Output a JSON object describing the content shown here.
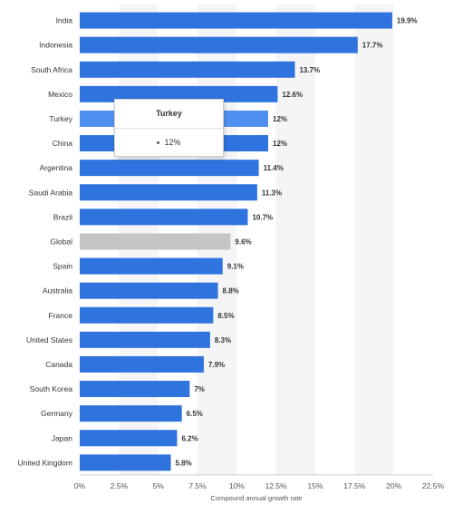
{
  "chart_data": {
    "type": "bar",
    "orientation": "horizontal",
    "categories": [
      "India",
      "Indonesia",
      "South Africa",
      "Mexico",
      "Turkey",
      "China",
      "Argentina",
      "Saudi Arabia",
      "Brazil",
      "Global",
      "Spain",
      "Australia",
      "France",
      "United States",
      "Canada",
      "South Korea",
      "Germany",
      "Japan",
      "United Kingdom"
    ],
    "values": [
      19.9,
      17.7,
      13.7,
      12.6,
      12,
      12,
      11.4,
      11.3,
      10.7,
      9.6,
      9.1,
      8.8,
      8.5,
      8.3,
      7.9,
      7,
      6.5,
      6.2,
      5.8
    ],
    "value_labels": [
      "19.9%",
      "17.7%",
      "13.7%",
      "12.6%",
      "12%",
      "12%",
      "11.4%",
      "11.3%",
      "10.7%",
      "9.6%",
      "9.1%",
      "8.8%",
      "8.5%",
      "8.3%",
      "7.9%",
      "7%",
      "6.5%",
      "6.2%",
      "5.8%"
    ],
    "xlabel": "Compound annual growth rate",
    "ylabel": "",
    "xlim": [
      0,
      22.5
    ],
    "ticks": [
      0,
      2.5,
      5,
      7.5,
      10,
      12.5,
      15,
      17.5,
      20,
      22.5
    ],
    "tick_labels": [
      "0%",
      "2.5%",
      "5%",
      "7.5%",
      "10%",
      "12.5%",
      "15%",
      "17.5%",
      "20%",
      "22.5%"
    ],
    "grid": "vertical bands",
    "highlighted_category": "Turkey",
    "colors": {
      "bar": "#2f73de",
      "bar_highlight": "#4f8ff0",
      "global": "#c5c5c5",
      "band": "#f5f5f8"
    }
  },
  "tooltip": {
    "title": "Turkey",
    "value": "12%"
  }
}
